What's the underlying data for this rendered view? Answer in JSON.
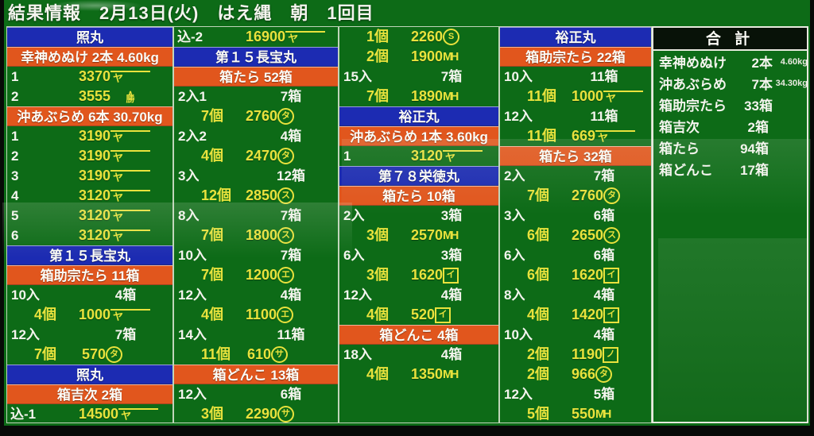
{
  "title": "結果情報　2月13日(火)　はえ縄　朝　1回目",
  "colors": {
    "board_green": "#0d6b17",
    "boat_blue": "#1c2bb2",
    "fish_orange": "#e1561d",
    "price_yellow": "#e9e23d",
    "text_white": "#f4f4ee"
  },
  "marks": {
    "ya-overline": {
      "style": "overline",
      "char": "ヤ"
    },
    "yama-katsu": {
      "style": "stack",
      "top": "∧",
      "char": "勝"
    },
    "circle-ta": {
      "style": "circle",
      "char": "タ"
    },
    "circle-su": {
      "style": "circle",
      "char": "ス"
    },
    "circle-e": {
      "style": "circle",
      "char": "エ"
    },
    "circle-sa": {
      "style": "circle",
      "char": "サ"
    },
    "circle-s": {
      "style": "circle",
      "char": "S"
    },
    "box-i": {
      "style": "box",
      "char": "イ"
    },
    "box-slash": {
      "style": "box",
      "char": "ノ"
    },
    "mh": {
      "style": "plain",
      "char": "MH"
    }
  },
  "columns": [
    {
      "blocks": [
        {
          "type": "boat",
          "text": "照丸"
        },
        {
          "type": "fish",
          "text": "幸神めぬけ 2本 4.60kg"
        },
        {
          "type": "num",
          "no": "1",
          "price": "3370",
          "mark": "ya-overline"
        },
        {
          "type": "num",
          "no": "2",
          "price": "3555",
          "mark": "yama-katsu"
        },
        {
          "type": "fish",
          "text": "沖あぶらめ 6本 30.70kg"
        },
        {
          "type": "num",
          "no": "1",
          "price": "3190",
          "mark": "ya-overline"
        },
        {
          "type": "num",
          "no": "2",
          "price": "3190",
          "mark": "ya-overline"
        },
        {
          "type": "num",
          "no": "3",
          "price": "3190",
          "mark": "ya-overline"
        },
        {
          "type": "num",
          "no": "4",
          "price": "3120",
          "mark": "ya-overline"
        },
        {
          "type": "num",
          "no": "5",
          "price": "3120",
          "mark": "ya-overline"
        },
        {
          "type": "num",
          "no": "6",
          "price": "3120",
          "mark": "ya-overline"
        },
        {
          "type": "boat",
          "text": "第１５長宝丸"
        },
        {
          "type": "fish",
          "text": "箱助宗たら 11箱"
        },
        {
          "type": "iri",
          "left": "10入",
          "right": "4箱"
        },
        {
          "type": "ko",
          "count": "4個",
          "price": "1000",
          "mark": "ya-overline"
        },
        {
          "type": "iri",
          "left": "12入",
          "right": "7箱"
        },
        {
          "type": "ko",
          "count": "7個",
          "price": "570",
          "mark": "circle-ta"
        },
        {
          "type": "boat",
          "text": "照丸"
        },
        {
          "type": "fish",
          "text": "箱吉次 2箱"
        },
        {
          "type": "komi",
          "left": "込-1",
          "price": "14500",
          "mark": "ya-overline"
        }
      ]
    },
    {
      "blocks": [
        {
          "type": "komi",
          "left": "込-2",
          "price": "16900",
          "mark": "ya-overline"
        },
        {
          "type": "boat",
          "text": "第１５長宝丸"
        },
        {
          "type": "fish",
          "text": "箱たら 52箱"
        },
        {
          "type": "iri",
          "left": "2入1",
          "right": "7箱"
        },
        {
          "type": "ko",
          "count": "7個",
          "price": "2760",
          "mark": "circle-ta"
        },
        {
          "type": "iri",
          "left": "2入2",
          "right": "4箱"
        },
        {
          "type": "ko",
          "count": "4個",
          "price": "2470",
          "mark": "circle-ta"
        },
        {
          "type": "iri",
          "left": "3入",
          "right": "12箱"
        },
        {
          "type": "ko",
          "count": "12個",
          "price": "2850",
          "mark": "circle-su"
        },
        {
          "type": "iri",
          "left": "8入",
          "right": "7箱"
        },
        {
          "type": "ko",
          "count": "7個",
          "price": "1800",
          "mark": "circle-su"
        },
        {
          "type": "iri",
          "left": "10入",
          "right": "7箱"
        },
        {
          "type": "ko",
          "count": "7個",
          "price": "1200",
          "mark": "circle-e"
        },
        {
          "type": "iri",
          "left": "12入",
          "right": "4箱"
        },
        {
          "type": "ko",
          "count": "4個",
          "price": "1100",
          "mark": "circle-e"
        },
        {
          "type": "iri",
          "left": "14入",
          "right": "11箱"
        },
        {
          "type": "ko",
          "count": "11個",
          "price": "610",
          "mark": "circle-sa"
        },
        {
          "type": "fish",
          "text": "箱どんこ 13箱"
        },
        {
          "type": "iri",
          "left": "12入",
          "right": "6箱"
        },
        {
          "type": "ko",
          "count": "3個",
          "price": "2290",
          "mark": "circle-sa"
        }
      ]
    },
    {
      "blocks": [
        {
          "type": "ko",
          "count": "1個",
          "price": "2260",
          "mark": "circle-s"
        },
        {
          "type": "ko",
          "count": "2個",
          "price": "1900",
          "mark": "mh"
        },
        {
          "type": "iri",
          "left": "15入",
          "right": "7箱"
        },
        {
          "type": "ko",
          "count": "7個",
          "price": "1890",
          "mark": "mh"
        },
        {
          "type": "boat",
          "text": "裕正丸"
        },
        {
          "type": "fish",
          "text": "沖あぶらめ 1本 3.60kg"
        },
        {
          "type": "num",
          "no": "1",
          "price": "3120",
          "mark": "ya-overline"
        },
        {
          "type": "boat",
          "text": "第７８栄徳丸"
        },
        {
          "type": "fish",
          "text": "箱たら 10箱"
        },
        {
          "type": "iri",
          "left": "2入",
          "right": "3箱"
        },
        {
          "type": "ko",
          "count": "3個",
          "price": "2570",
          "mark": "mh"
        },
        {
          "type": "iri",
          "left": "6入",
          "right": "3箱"
        },
        {
          "type": "ko",
          "count": "3個",
          "price": "1620",
          "mark": "box-i"
        },
        {
          "type": "iri",
          "left": "12入",
          "right": "4箱"
        },
        {
          "type": "ko",
          "count": "4個",
          "price": "520",
          "mark": "box-i"
        },
        {
          "type": "fish",
          "text": "箱どんこ 4箱"
        },
        {
          "type": "iri",
          "left": "18入",
          "right": "4箱"
        },
        {
          "type": "ko",
          "count": "4個",
          "price": "1350",
          "mark": "mh"
        },
        {
          "type": "empty"
        },
        {
          "type": "empty"
        }
      ]
    },
    {
      "blocks": [
        {
          "type": "boat",
          "text": "裕正丸"
        },
        {
          "type": "fish",
          "text": "箱助宗たら 22箱"
        },
        {
          "type": "iri",
          "left": "10入",
          "right": "11箱"
        },
        {
          "type": "ko",
          "count": "11個",
          "price": "1000",
          "mark": "ya-overline"
        },
        {
          "type": "iri",
          "left": "12入",
          "right": "11箱"
        },
        {
          "type": "ko",
          "count": "11個",
          "price": "669",
          "mark": "ya-overline"
        },
        {
          "type": "fish",
          "text": "箱たら 32箱"
        },
        {
          "type": "iri",
          "left": "2入",
          "right": "7箱"
        },
        {
          "type": "ko",
          "count": "7個",
          "price": "2760",
          "mark": "circle-ta"
        },
        {
          "type": "iri",
          "left": "3入",
          "right": "6箱"
        },
        {
          "type": "ko",
          "count": "6個",
          "price": "2650",
          "mark": "circle-su"
        },
        {
          "type": "iri",
          "left": "6入",
          "right": "6箱"
        },
        {
          "type": "ko",
          "count": "6個",
          "price": "1620",
          "mark": "box-i"
        },
        {
          "type": "iri",
          "left": "8入",
          "right": "4箱"
        },
        {
          "type": "ko",
          "count": "4個",
          "price": "1420",
          "mark": "box-i"
        },
        {
          "type": "iri",
          "left": "10入",
          "right": "4箱"
        },
        {
          "type": "ko",
          "count": "2個",
          "price": "1190",
          "mark": "box-slash"
        },
        {
          "type": "ko",
          "count": "2個",
          "price": "966",
          "mark": "circle-ta"
        },
        {
          "type": "iri",
          "left": "12入",
          "right": "5箱"
        },
        {
          "type": "ko",
          "count": "5個",
          "price": "550",
          "mark": "mh"
        }
      ]
    }
  ],
  "totals": {
    "header": "合 計",
    "rows": [
      {
        "label": "幸神めぬけ",
        "qty": "2本",
        "kg": "4.60kg"
      },
      {
        "label": "沖あぶらめ",
        "qty": "7本",
        "kg": "34.30kg"
      },
      {
        "label": "箱助宗たら",
        "qty": "33箱",
        "kg": ""
      },
      {
        "label": "箱吉次",
        "qty": "2箱",
        "kg": ""
      },
      {
        "label": "箱たら",
        "qty": "94箱",
        "kg": ""
      },
      {
        "label": "箱どんこ",
        "qty": "17箱",
        "kg": ""
      }
    ]
  }
}
